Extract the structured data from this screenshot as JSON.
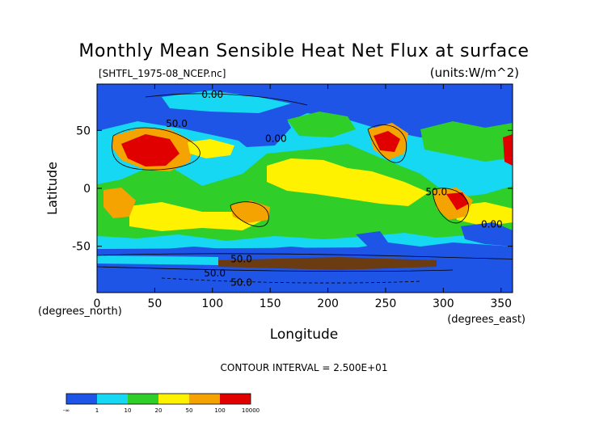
{
  "chart_data": {
    "type": "heatmap",
    "title": "Monthly Mean Sensible Heat Net Flux at surface",
    "subtitle_left": "[SHTFL_1975-08_NCEP.nc]",
    "subtitle_right": "(units:W/m^2)",
    "xlabel": "Longitude",
    "ylabel": "Latitude",
    "x_unit_label": "(degrees_east)",
    "y_unit_label": "(degrees_north)",
    "xlim": [
      0,
      360
    ],
    "ylim": [
      -90,
      90
    ],
    "x_ticks": [
      0,
      50,
      100,
      150,
      200,
      250,
      300,
      350
    ],
    "y_ticks": [
      -50,
      0,
      50
    ],
    "contour_interval_label": "CONTOUR INTERVAL = 2.500E+01",
    "contour_labels": [
      {
        "text": "0.00",
        "lon": 100,
        "lat": 78
      },
      {
        "text": "50.0",
        "lon": 69,
        "lat": 53
      },
      {
        "text": "0.00",
        "lon": 155,
        "lat": 40
      },
      {
        "text": "50.0",
        "lon": 294,
        "lat": -6
      },
      {
        "text": "0.00",
        "lon": 342,
        "lat": -34
      },
      {
        "text": "50.0",
        "lon": 125,
        "lat": -64
      },
      {
        "text": "50.0",
        "lon": 102,
        "lat": -76
      },
      {
        "text": "50.0",
        "lon": 125,
        "lat": -84
      }
    ],
    "colorbar": {
      "colors": [
        "#1e55e6",
        "#16d8f2",
        "#2fce28",
        "#fff200",
        "#f5a300",
        "#e00000"
      ],
      "boundaries": [
        "-∞",
        "1",
        "10",
        "20",
        "50",
        "100",
        "10000"
      ]
    },
    "background_color": "#1e55e6"
  }
}
